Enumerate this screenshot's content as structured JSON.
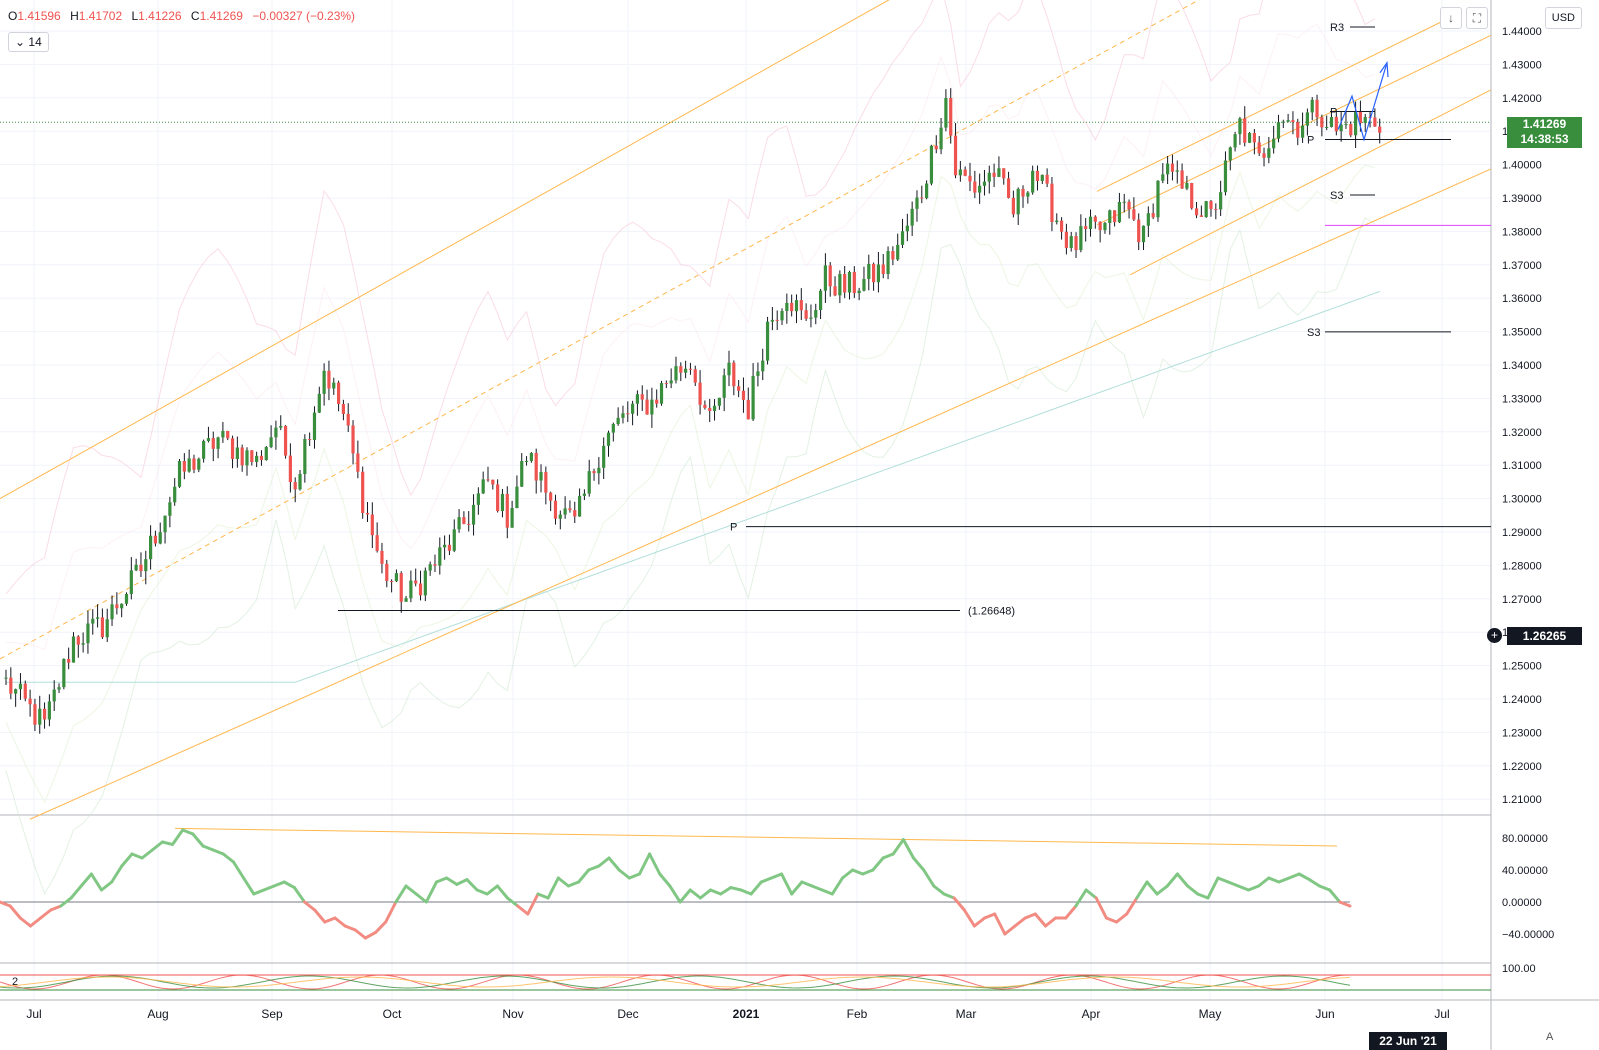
{
  "header": {
    "ohlc": [
      {
        "key": "O",
        "value": "1.41596"
      },
      {
        "key": "H",
        "value": "1.41702"
      },
      {
        "key": "L",
        "value": "1.41226"
      },
      {
        "key": "C",
        "value": "1.41269"
      }
    ],
    "change": "−0.00327 (−0.23%)",
    "interval": "14",
    "currency": "USD",
    "scroll_down_icon": "↓",
    "fullscreen_icon": "⛶"
  },
  "price_label": {
    "price": "1.41269",
    "countdown": "14:38:53"
  },
  "crosshair": {
    "price": "1.26265",
    "date": "22 Jun '21",
    "add_icon": "+"
  },
  "scale_mode": "A",
  "colors": {
    "up": "#388e3c",
    "down": "#ef5350",
    "channel": "#ffb74d",
    "indicator_up": "#81c784",
    "indicator_down": "#f28b82"
  },
  "chart_data": [
    {
      "type": "candlestick",
      "title": "",
      "x_labels": [
        "Jul",
        "Aug",
        "Sep",
        "Oct",
        "Nov",
        "Dec",
        "2021",
        "Feb",
        "Mar",
        "Apr",
        "May",
        "Jun",
        "Jul"
      ],
      "y_ticks": [
        "1.44000",
        "1.43000",
        "1.42000",
        "1.41000",
        "1.40000",
        "1.39000",
        "1.38000",
        "1.37000",
        "1.36000",
        "1.35000",
        "1.34000",
        "1.33000",
        "1.32000",
        "1.31000",
        "1.30000",
        "1.29000",
        "1.28000",
        "1.27000",
        "1.26000",
        "1.25000",
        "1.24000",
        "1.23000",
        "1.22000",
        "1.21000"
      ],
      "ylim": [
        1.205,
        1.445
      ],
      "grid": true,
      "close_path": [
        [
          0,
          1.245
        ],
        [
          8,
          1.232
        ],
        [
          14,
          1.258
        ],
        [
          20,
          1.262
        ],
        [
          28,
          1.279
        ],
        [
          36,
          1.307
        ],
        [
          44,
          1.318
        ],
        [
          52,
          1.311
        ],
        [
          56,
          1.322
        ],
        [
          60,
          1.305
        ],
        [
          66,
          1.339
        ],
        [
          70,
          1.325
        ],
        [
          74,
          1.3
        ],
        [
          78,
          1.279
        ],
        [
          83,
          1.27
        ],
        [
          88,
          1.279
        ],
        [
          94,
          1.29
        ],
        [
          100,
          1.305
        ],
        [
          104,
          1.295
        ],
        [
          108,
          1.313
        ],
        [
          113,
          1.3
        ],
        [
          118,
          1.292
        ],
        [
          124,
          1.318
        ],
        [
          130,
          1.327
        ],
        [
          134,
          1.329
        ],
        [
          138,
          1.337
        ],
        [
          142,
          1.341
        ],
        [
          146,
          1.322
        ],
        [
          150,
          1.338
        ],
        [
          154,
          1.327
        ],
        [
          158,
          1.352
        ],
        [
          162,
          1.362
        ],
        [
          166,
          1.352
        ],
        [
          170,
          1.366
        ],
        [
          174,
          1.363
        ],
        [
          178,
          1.365
        ],
        [
          182,
          1.369
        ],
        [
          186,
          1.378
        ],
        [
          190,
          1.392
        ],
        [
          195,
          1.42
        ],
        [
          197,
          1.398
        ],
        [
          201,
          1.393
        ],
        [
          205,
          1.398
        ],
        [
          209,
          1.386
        ],
        [
          213,
          1.399
        ],
        [
          217,
          1.387
        ],
        [
          221,
          1.375
        ],
        [
          225,
          1.38
        ],
        [
          228,
          1.381
        ],
        [
          232,
          1.388
        ],
        [
          236,
          1.378
        ],
        [
          240,
          1.399
        ],
        [
          245,
          1.391
        ],
        [
          250,
          1.384
        ],
        [
          256,
          1.412
        ],
        [
          260,
          1.401
        ],
        [
          264,
          1.415
        ],
        [
          268,
          1.412
        ],
        [
          272,
          1.417
        ],
        [
          276,
          1.41
        ],
        [
          280,
          1.413
        ]
      ],
      "annotations": {
        "low_label": "(1.26648)",
        "low_value": 1.26648,
        "pivot_long": {
          "label": "P",
          "value": 1.2916
        },
        "pivots_short": [
          {
            "label": "R3",
            "value": 1.4412
          },
          {
            "label": "P",
            "value": 1.4159
          },
          {
            "label": "P",
            "value": 1.4075
          },
          {
            "label": "S3",
            "value": 1.3909
          },
          {
            "label": "S3",
            "value": 1.3499
          }
        ],
        "magenta_level": 1.3818,
        "current_price": 1.41269
      }
    },
    {
      "type": "line",
      "title": "",
      "y_ticks": [
        "80.00000",
        "40.00000",
        "0.00000",
        "−40.00000"
      ],
      "ylim": [
        -65,
        115
      ],
      "values": [
        0,
        -5,
        -20,
        -30,
        -20,
        -10,
        -5,
        5,
        20,
        35,
        15,
        25,
        45,
        60,
        55,
        65,
        75,
        72,
        90,
        85,
        70,
        65,
        60,
        50,
        30,
        10,
        15,
        20,
        25,
        18,
        0,
        -10,
        -25,
        -20,
        -30,
        -35,
        -45,
        -38,
        -25,
        0,
        20,
        10,
        0,
        25,
        30,
        22,
        28,
        15,
        10,
        20,
        5,
        -5,
        -15,
        10,
        5,
        30,
        20,
        25,
        40,
        45,
        55,
        40,
        30,
        35,
        60,
        35,
        20,
        0,
        15,
        5,
        15,
        10,
        18,
        15,
        10,
        25,
        30,
        35,
        10,
        25,
        20,
        15,
        10,
        30,
        40,
        35,
        40,
        55,
        60,
        78,
        55,
        40,
        20,
        10,
        5,
        -10,
        -30,
        -20,
        -15,
        -40,
        -30,
        -20,
        -15,
        -30,
        -20,
        -20,
        -5,
        15,
        5,
        -20,
        -25,
        -15,
        5,
        25,
        10,
        20,
        35,
        20,
        10,
        5,
        30,
        25,
        20,
        15,
        20,
        30,
        25,
        30,
        35,
        28,
        20,
        15,
        0,
        -5
      ]
    },
    {
      "type": "line",
      "title": "",
      "y_ticks": [
        "100.00"
      ],
      "series_count": "2"
    }
  ]
}
